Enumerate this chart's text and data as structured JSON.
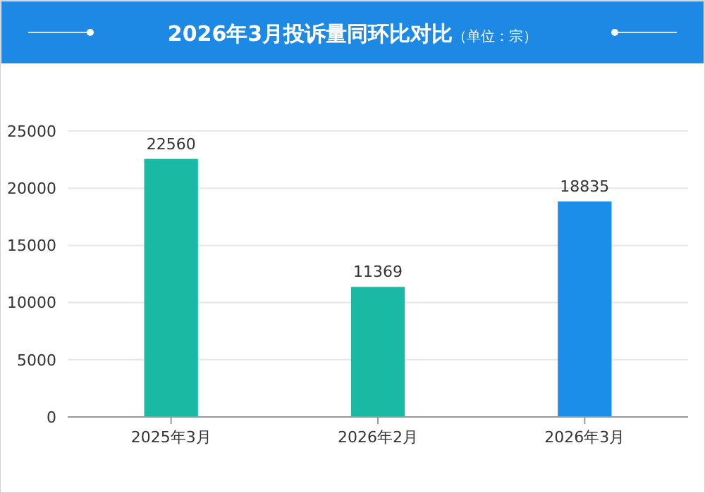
{
  "chart_data": {
    "type": "bar",
    "title": "2026年3月投诉量同环比对比",
    "subtitle": "（单位：宗）",
    "categories": [
      "2025年3月",
      "2026年2月",
      "2026年3月"
    ],
    "values": [
      22560,
      11369,
      18835
    ],
    "colors": [
      "#1ab9a4",
      "#1ab9a4",
      "#1a8ee8"
    ],
    "ylim": [
      0,
      25000
    ],
    "yticks": [
      0,
      5000,
      10000,
      15000,
      20000,
      25000
    ],
    "grid": "y",
    "data_labels": true
  }
}
